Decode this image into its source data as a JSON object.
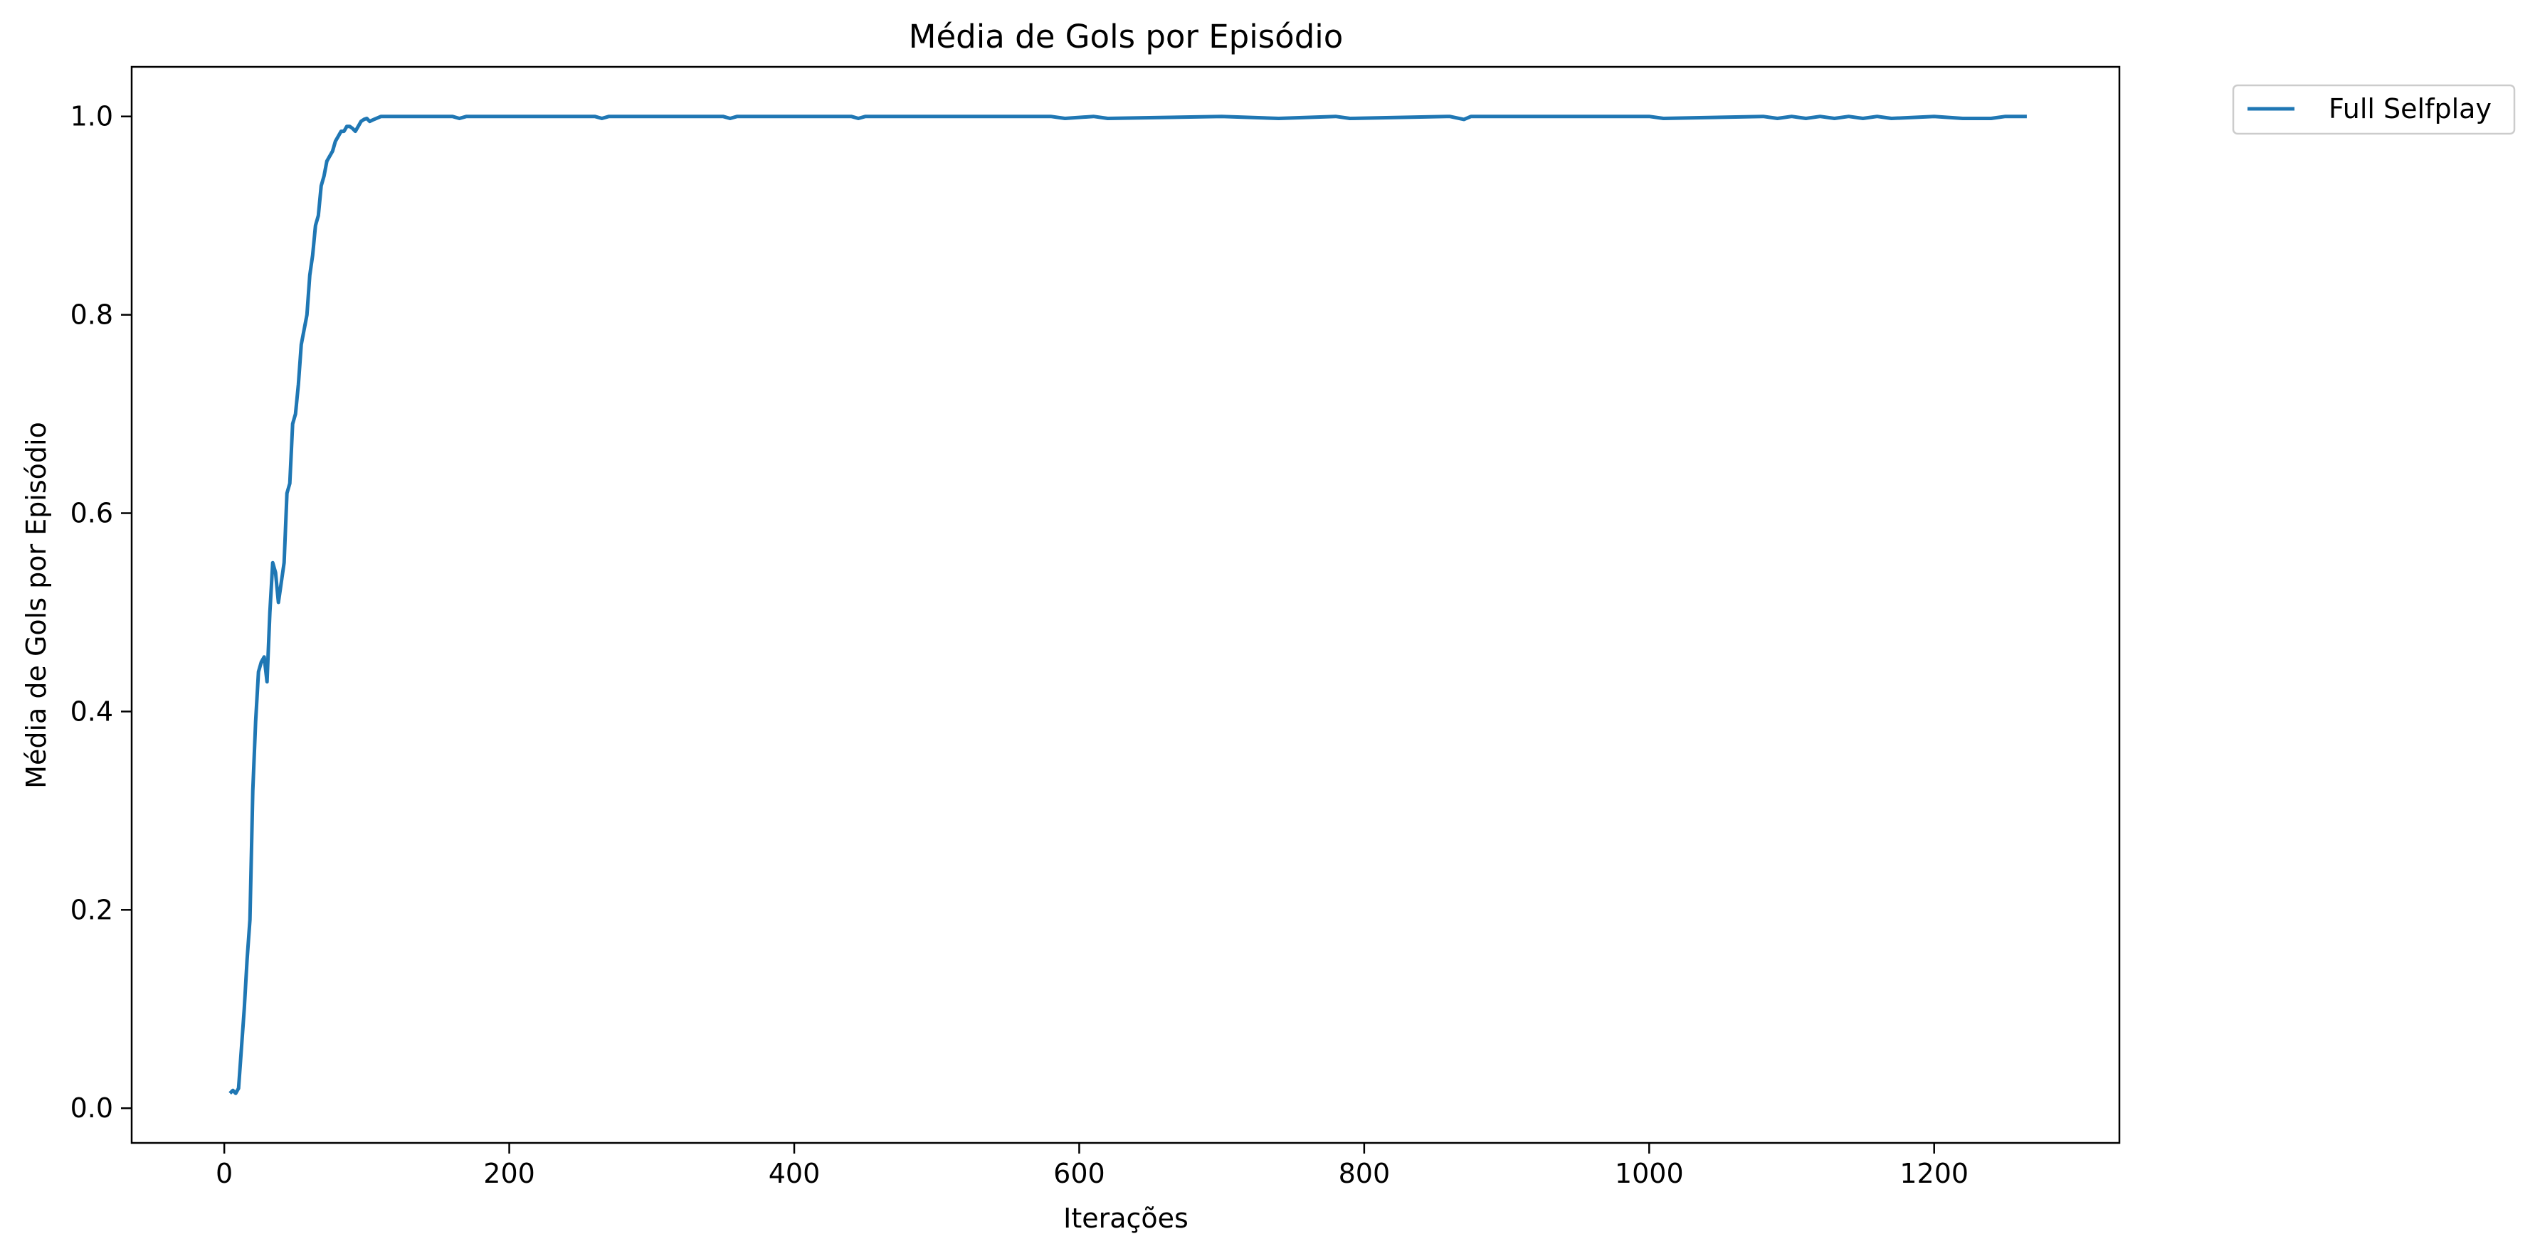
{
  "chart_data": {
    "type": "line",
    "title": "Média de Gols por Episódio",
    "xlabel": "Iterações",
    "ylabel": "Média de Gols por Episódio",
    "xlim": [
      -65,
      1330
    ],
    "ylim": [
      -0.035,
      1.05
    ],
    "xticks": [
      0,
      200,
      400,
      600,
      800,
      1000,
      1200
    ],
    "yticks": [
      0.0,
      0.2,
      0.4,
      0.6,
      0.8,
      1.0
    ],
    "xtick_labels": [
      "0",
      "200",
      "400",
      "600",
      "800",
      "1000",
      "1200"
    ],
    "ytick_labels": [
      "0.0",
      "0.2",
      "0.4",
      "0.6",
      "0.8",
      "1.0"
    ],
    "grid": false,
    "legend": {
      "placement": "outside-top-right"
    },
    "series": [
      {
        "name": "Full Selfplay",
        "color": "#1f77b4",
        "x": [
          4,
          6,
          8,
          10,
          12,
          14,
          16,
          18,
          20,
          22,
          24,
          26,
          28,
          30,
          32,
          34,
          36,
          38,
          40,
          42,
          44,
          46,
          48,
          50,
          52,
          54,
          56,
          58,
          60,
          62,
          64,
          66,
          68,
          70,
          72,
          74,
          76,
          78,
          80,
          82,
          84,
          86,
          88,
          90,
          92,
          94,
          96,
          98,
          100,
          102,
          105,
          110,
          115,
          120,
          140,
          160,
          165,
          170,
          200,
          260,
          265,
          270,
          350,
          355,
          360,
          440,
          445,
          450,
          580,
          590,
          610,
          620,
          700,
          740,
          780,
          790,
          860,
          870,
          875,
          880,
          1000,
          1010,
          1080,
          1090,
          1100,
          1110,
          1120,
          1130,
          1140,
          1150,
          1160,
          1170,
          1200,
          1220,
          1240,
          1250,
          1265
        ],
        "y": [
          0.015,
          0.018,
          0.015,
          0.02,
          0.06,
          0.1,
          0.15,
          0.19,
          0.32,
          0.39,
          0.44,
          0.45,
          0.455,
          0.43,
          0.5,
          0.55,
          0.54,
          0.51,
          0.53,
          0.55,
          0.62,
          0.63,
          0.69,
          0.7,
          0.73,
          0.77,
          0.785,
          0.8,
          0.84,
          0.86,
          0.89,
          0.9,
          0.93,
          0.94,
          0.955,
          0.96,
          0.965,
          0.975,
          0.98,
          0.985,
          0.985,
          0.99,
          0.99,
          0.988,
          0.985,
          0.99,
          0.995,
          0.997,
          0.998,
          0.995,
          0.997,
          1.0,
          1.0,
          1.0,
          1.0,
          1.0,
          0.998,
          1.0,
          1.0,
          1.0,
          0.998,
          1.0,
          1.0,
          0.998,
          1.0,
          1.0,
          0.998,
          1.0,
          1.0,
          0.998,
          1.0,
          0.998,
          1.0,
          0.998,
          1.0,
          0.998,
          1.0,
          0.997,
          1.0,
          1.0,
          1.0,
          0.998,
          1.0,
          0.998,
          1.0,
          0.998,
          1.0,
          0.998,
          1.0,
          0.998,
          1.0,
          0.998,
          1.0,
          0.998,
          0.998,
          1.0,
          1.0
        ]
      }
    ]
  }
}
